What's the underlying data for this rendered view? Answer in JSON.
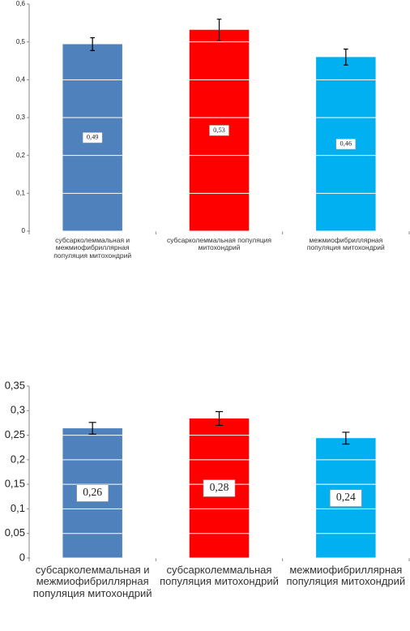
{
  "chart_data": [
    {
      "type": "bar",
      "categories": [
        "субсарколеммальная и межмиофибриллярная популяция митохондрий",
        "субсарколеммальная популяция митохондрий",
        "межмиофибриллярная популяция митохондрий"
      ],
      "values": [
        0.494,
        0.532,
        0.46
      ],
      "value_labels": [
        "0,49",
        "0,53",
        "0,46"
      ],
      "errors": [
        0.017,
        0.028,
        0.021
      ],
      "colors": [
        "#4f81bd",
        "#ff0000",
        "#00b0f0"
      ],
      "ylim": [
        0,
        0.6
      ],
      "yticks": [
        {
          "value": 0,
          "label": "0"
        },
        {
          "value": 0.1,
          "label": "0,1"
        },
        {
          "value": 0.2,
          "label": "0,2"
        },
        {
          "value": 0.3,
          "label": "0,3"
        },
        {
          "value": 0.4,
          "label": "0,4"
        },
        {
          "value": 0.5,
          "label": "0,5"
        },
        {
          "value": 0.6,
          "label": "0,6"
        }
      ],
      "grid": true
    },
    {
      "type": "bar",
      "categories": [
        "субсарколеммальная и межмиофибриллярная популяция митохондрий",
        "субсарколеммальная популяция митохондрий",
        "межмиофибриллярная популяция митохондрий"
      ],
      "values": [
        0.264,
        0.284,
        0.244
      ],
      "value_labels": [
        "0,26",
        "0,28",
        "0,24"
      ],
      "errors": [
        0.012,
        0.014,
        0.012
      ],
      "colors": [
        "#4f81bd",
        "#ff0000",
        "#00b0f0"
      ],
      "ylim": [
        0,
        0.35
      ],
      "yticks": [
        {
          "value": 0,
          "label": "0"
        },
        {
          "value": 0.05,
          "label": "0,05"
        },
        {
          "value": 0.1,
          "label": "0,1"
        },
        {
          "value": 0.15,
          "label": "0,15"
        },
        {
          "value": 0.2,
          "label": "0,2"
        },
        {
          "value": 0.25,
          "label": "0,25"
        },
        {
          "value": 0.3,
          "label": "0,3"
        },
        {
          "value": 0.35,
          "label": "0,35"
        }
      ],
      "grid": true
    }
  ]
}
